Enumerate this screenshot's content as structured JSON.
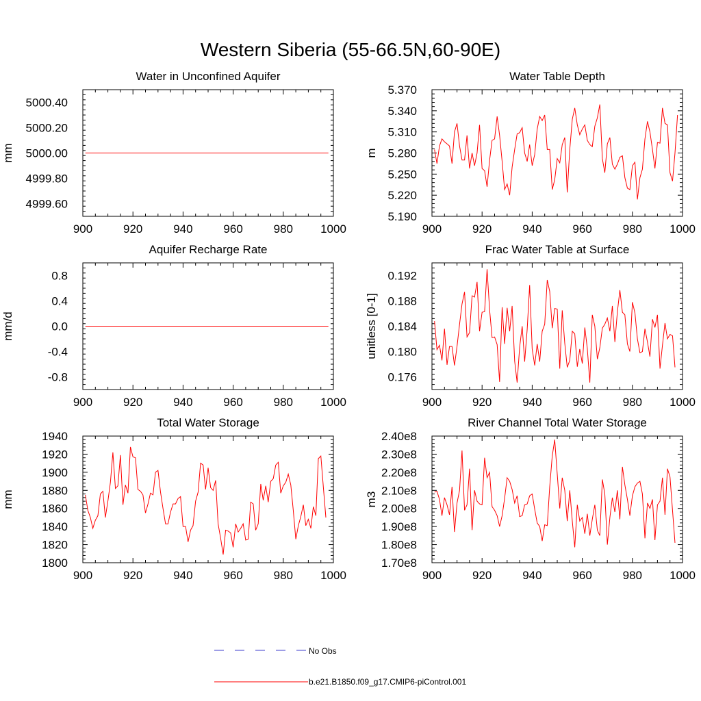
{
  "title": "Western Siberia (55-66.5N,60-90E)",
  "colors": {
    "model": "#ff0000",
    "obs": "#3b3bcc",
    "axis": "#000000"
  },
  "legend": {
    "obs_label": "No Obs",
    "model_label": "b.e21.B1850.f09_g17.CMIP6-piControl.001"
  },
  "chart_data": [
    {
      "type": "line",
      "title": "Water in Unconfined Aquifer",
      "ylabel": "mm",
      "xlim": [
        900,
        1000
      ],
      "ylim": [
        4999.5,
        5000.5
      ],
      "yticks": [
        4999.6,
        4999.8,
        5000.0,
        5000.2,
        5000.4
      ],
      "ytick_labels": [
        "4999.60",
        "4999.80",
        "5000.00",
        "5000.20",
        "5000.40"
      ],
      "xticks": [
        900,
        920,
        940,
        960,
        980,
        1000
      ],
      "x": [
        901,
        998
      ],
      "series": [
        {
          "name": "b.e21.B1850.f09_g17.CMIP6-piControl.001",
          "values": [
            5000.0,
            5000.0
          ]
        }
      ]
    },
    {
      "type": "line",
      "title": "Water Table Depth",
      "ylabel": "m",
      "xlim": [
        900,
        1000
      ],
      "ylim": [
        5.19,
        5.37
      ],
      "yticks": [
        5.19,
        5.22,
        5.25,
        5.28,
        5.31,
        5.34,
        5.37
      ],
      "ytick_labels": [
        "5.190",
        "5.220",
        "5.250",
        "5.280",
        "5.310",
        "5.340",
        "5.370"
      ],
      "xticks": [
        900,
        920,
        940,
        960,
        980,
        1000
      ],
      "x_start": 901,
      "series": [
        {
          "name": "b.e21.B1850.f09_g17.CMIP6-piControl.001",
          "values": [
            5.285,
            5.265,
            5.29,
            5.3,
            5.296,
            5.293,
            5.29,
            5.265,
            5.31,
            5.322,
            5.29,
            5.27,
            5.27,
            5.305,
            5.258,
            5.28,
            5.262,
            5.28,
            5.32,
            5.258,
            5.255,
            5.232,
            5.27,
            5.298,
            5.3,
            5.332,
            5.305,
            5.268,
            5.228,
            5.236,
            5.22,
            5.26,
            5.285,
            5.307,
            5.309,
            5.316,
            5.28,
            5.268,
            5.292,
            5.262,
            5.278,
            5.314,
            5.332,
            5.326,
            5.334,
            5.285,
            5.285,
            5.228,
            5.242,
            5.272,
            5.266,
            5.292,
            5.302,
            5.224,
            5.285,
            5.328,
            5.344,
            5.32,
            5.306,
            5.314,
            5.32,
            5.298,
            5.292,
            5.289,
            5.318,
            5.33,
            5.349,
            5.272,
            5.252,
            5.293,
            5.302,
            5.264,
            5.257,
            5.264,
            5.274,
            5.276,
            5.245,
            5.23,
            5.228,
            5.262,
            5.267,
            5.214,
            5.245,
            5.257,
            5.3,
            5.325,
            5.31,
            5.285,
            5.258,
            5.295,
            5.294,
            5.344,
            5.322,
            5.32,
            5.252,
            5.24,
            5.28,
            5.334
          ]
        }
      ]
    },
    {
      "type": "line",
      "title": "Aquifer Recharge Rate",
      "ylabel": "mm/d",
      "xlim": [
        900,
        1000
      ],
      "ylim": [
        -1.0,
        1.0
      ],
      "yticks": [
        -0.8,
        -0.4,
        0.0,
        0.4,
        0.8
      ],
      "ytick_labels": [
        "-0.8",
        "-0.4",
        "0.0",
        "0.4",
        "0.8"
      ],
      "xticks": [
        900,
        920,
        940,
        960,
        980,
        1000
      ],
      "x": [
        901,
        998
      ],
      "series": [
        {
          "name": "b.e21.B1850.f09_g17.CMIP6-piControl.001",
          "values": [
            0.0,
            0.0
          ]
        }
      ]
    },
    {
      "type": "line",
      "title": "Frac Water Table at Surface",
      "ylabel": "unitless [0-1]",
      "xlim": [
        900,
        1000
      ],
      "ylim": [
        0.174,
        0.194
      ],
      "yticks": [
        0.176,
        0.18,
        0.184,
        0.188,
        0.192
      ],
      "ytick_labels": [
        "0.176",
        "0.180",
        "0.184",
        "0.188",
        "0.192"
      ],
      "xticks": [
        900,
        920,
        940,
        960,
        980,
        1000
      ],
      "x_start": 901,
      "series": [
        {
          "name": "b.e21.B1850.f09_g17.CMIP6-piControl.001",
          "values": [
            0.1848,
            0.1803,
            0.181,
            0.1786,
            0.1836,
            0.1779,
            0.1808,
            0.1808,
            0.1778,
            0.1808,
            0.1843,
            0.1875,
            0.1894,
            0.1823,
            0.183,
            0.1888,
            0.1886,
            0.191,
            0.1832,
            0.1862,
            0.1863,
            0.193,
            0.1866,
            0.1822,
            0.1823,
            0.1811,
            0.1752,
            0.187,
            0.1812,
            0.1869,
            0.1832,
            0.1872,
            0.1785,
            0.1751,
            0.1807,
            0.184,
            0.1784,
            0.1835,
            0.1905,
            0.1804,
            0.1778,
            0.1812,
            0.1784,
            0.1832,
            0.1843,
            0.1913,
            0.1895,
            0.1837,
            0.1868,
            0.1867,
            0.1773,
            0.1865,
            0.1813,
            0.1775,
            0.1786,
            0.1832,
            0.1828,
            0.1776,
            0.1804,
            0.1781,
            0.1838,
            0.1805,
            0.1751,
            0.1858,
            0.184,
            0.1788,
            0.1806,
            0.1837,
            0.1843,
            0.1853,
            0.1832,
            0.1872,
            0.1815,
            0.1862,
            0.1897,
            0.1862,
            0.1858,
            0.1812,
            0.18,
            0.1878,
            0.1861,
            0.182,
            0.1798,
            0.18,
            0.1836,
            0.1815,
            0.1792,
            0.1851,
            0.1838,
            0.1858,
            0.1773,
            0.181,
            0.1845,
            0.182,
            0.1827,
            0.1825,
            0.1775
          ]
        }
      ]
    },
    {
      "type": "line",
      "title": "Total Water Storage",
      "ylabel": "mm",
      "xlim": [
        900,
        1000
      ],
      "ylim": [
        1800,
        1940
      ],
      "yticks": [
        1800,
        1820,
        1840,
        1860,
        1880,
        1900,
        1920,
        1940
      ],
      "ytick_labels": [
        "1800",
        "1820",
        "1840",
        "1860",
        "1880",
        "1900",
        "1920",
        "1940"
      ],
      "xticks": [
        900,
        920,
        940,
        960,
        980,
        1000
      ],
      "x_start": 901,
      "series": [
        {
          "name": "b.e21.B1850.f09_g17.CMIP6-piControl.001",
          "values": [
            1875,
            1858,
            1850,
            1838,
            1847,
            1852,
            1876,
            1879,
            1850,
            1868,
            1889,
            1922,
            1882,
            1885,
            1919,
            1864,
            1886,
            1877,
            1928,
            1917,
            1916,
            1881,
            1879,
            1875,
            1855,
            1865,
            1877,
            1875,
            1900,
            1902,
            1878,
            1860,
            1843,
            1843,
            1856,
            1865,
            1865,
            1871,
            1873,
            1840,
            1840,
            1823,
            1836,
            1841,
            1868,
            1878,
            1910,
            1908,
            1881,
            1905,
            1883,
            1880,
            1891,
            1843,
            1827,
            1809,
            1836,
            1835,
            1833,
            1817,
            1843,
            1834,
            1838,
            1843,
            1825,
            1826,
            1867,
            1865,
            1836,
            1843,
            1887,
            1869,
            1885,
            1867,
            1890,
            1893,
            1908,
            1911,
            1877,
            1885,
            1889,
            1898,
            1886,
            1858,
            1826,
            1841,
            1851,
            1864,
            1841,
            1848,
            1838,
            1862,
            1852,
            1915,
            1918,
            1883,
            1850
          ]
        }
      ]
    },
    {
      "type": "line",
      "title": "River Channel Total Water Storage",
      "ylabel": "m3",
      "xlim": [
        900,
        1000
      ],
      "ylim": [
        170000000,
        240000000
      ],
      "yticks": [
        170000000,
        180000000,
        190000000,
        200000000,
        210000000,
        220000000,
        230000000,
        240000000
      ],
      "ytick_labels": [
        "1.70e8",
        "1.80e8",
        "1.90e8",
        "2.00e8",
        "2.10e8",
        "2.20e8",
        "2.30e8",
        "2.40e8"
      ],
      "xticks": [
        900,
        920,
        940,
        960,
        980,
        1000
      ],
      "x_start": 901,
      "series": [
        {
          "name": "b.e21.B1850.f09_g17.CMIP6-piControl.001",
          "values": [
            209000000,
            209500000,
            205000000,
            196000000,
            206000000,
            202000000,
            196500000,
            212000000,
            187000000,
            203000000,
            210000000,
            232000000,
            199000000,
            202000000,
            222000000,
            188000000,
            210000000,
            204000000,
            202500000,
            202000000,
            228000000,
            217000000,
            220000000,
            201000000,
            199000000,
            196000000,
            190000000,
            196000000,
            205500000,
            217000000,
            215000000,
            210500000,
            203000000,
            207000000,
            195500000,
            196000000,
            202000000,
            202500000,
            207000000,
            208000000,
            199500000,
            192000000,
            190000000,
            182000000,
            191000000,
            190500000,
            212000000,
            229000000,
            238000000,
            219000000,
            200000000,
            217000000,
            210000000,
            193000000,
            210000000,
            193000000,
            178500000,
            202000000,
            193000000,
            195000000,
            186000000,
            197000000,
            185000000,
            194000000,
            202000000,
            188000000,
            185000000,
            216000000,
            208000000,
            180000000,
            195000000,
            206000000,
            198000000,
            210000000,
            194000000,
            223000000,
            213000000,
            205000000,
            196000000,
            207000000,
            212000000,
            214000000,
            215000000,
            208000000,
            183500000,
            203000000,
            200000000,
            205000000,
            182500000,
            202000000,
            204000000,
            217000000,
            196500000,
            222000000,
            217500000,
            199000000,
            181000000
          ]
        }
      ]
    }
  ]
}
